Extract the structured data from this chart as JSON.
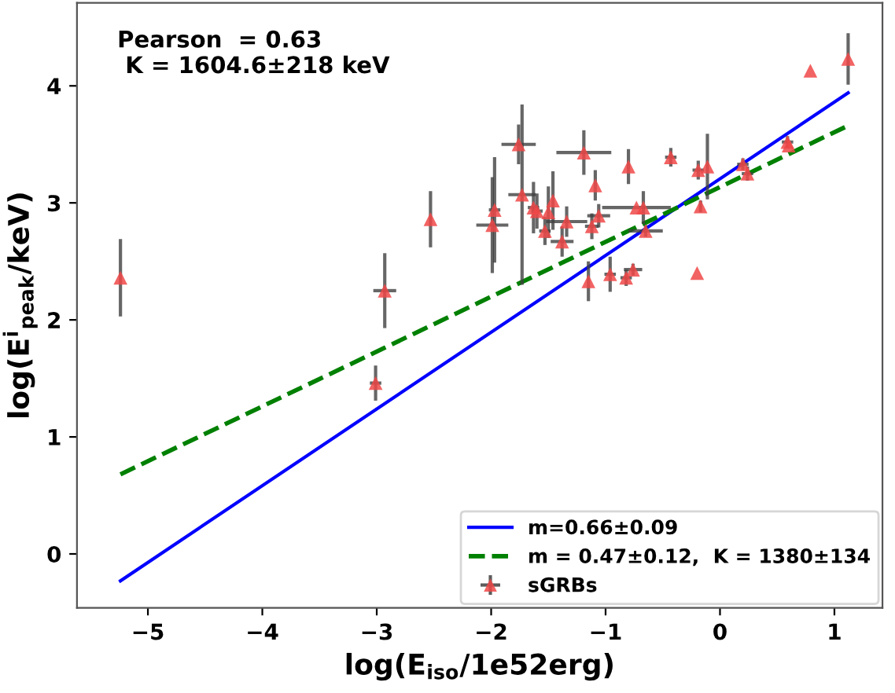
{
  "chart_data": {
    "type": "scatter",
    "xlabel": "log(E$_{iso}$/1e52erg)",
    "ylabel": "log(E$^{i}$$_{peak}$/keV)",
    "annotations": [
      "Pearson  = 0.63\n K = 1604.6±218 keV"
    ],
    "xlim": [
      -5.62,
      1.42
    ],
    "ylim": [
      -0.46,
      4.71
    ],
    "xticks": [
      {
        "value": -5,
        "label": "−5"
      },
      {
        "value": -4,
        "label": "−4"
      },
      {
        "value": -3,
        "label": "−3"
      },
      {
        "value": -2,
        "label": "−2"
      },
      {
        "value": -1,
        "label": "−1"
      },
      0,
      1
    ],
    "yticks": [
      0,
      1,
      2,
      3,
      4
    ],
    "grid": false,
    "legend": "bottom right",
    "series": [
      {
        "name": "m=0.66±0.09",
        "type": "line",
        "color": "#0000ff",
        "line_style": "solid",
        "x": [
          -5.24,
          1.12
        ],
        "values": [
          -0.23,
          3.94
        ]
      },
      {
        "name": "m = 0.47±0.12,  K = 1380±134",
        "type": "line",
        "color": "#008000",
        "line_style": "dashed",
        "x": [
          -5.24,
          1.12
        ],
        "values": [
          0.68,
          3.66
        ]
      },
      {
        "name": "sGRBs",
        "color": "#f04848",
        "marker": "triangle",
        "x": [
          -5.24,
          -2.93,
          -3.01,
          -2.53,
          -1.99,
          -1.97,
          -1.76,
          -1.73,
          -1.63,
          -1.6,
          -1.53,
          -1.5,
          -1.46,
          -1.38,
          -1.34,
          -1.19,
          -1.15,
          -1.12,
          -1.09,
          -1.06,
          -0.96,
          -0.82,
          -0.76,
          -0.8,
          -0.73,
          -0.67,
          -0.65,
          -0.43,
          -0.2,
          -0.19,
          -0.17,
          -0.11,
          0.2,
          0.24,
          0.59,
          0.6,
          0.79,
          1.12
        ],
        "values": [
          2.36,
          2.25,
          1.46,
          2.86,
          2.81,
          2.94,
          3.5,
          3.07,
          2.96,
          2.93,
          2.76,
          2.92,
          3.02,
          2.67,
          2.84,
          3.43,
          2.33,
          2.8,
          3.15,
          2.89,
          2.39,
          2.36,
          2.43,
          3.31,
          2.96,
          2.96,
          2.76,
          3.39,
          2.4,
          3.28,
          2.97,
          3.31,
          3.33,
          3.25,
          3.52,
          3.49,
          4.13,
          4.23
        ],
        "errors": [
          0.33,
          0.32,
          0.15,
          0.24,
          0.41,
          0.45,
          0.17,
          0.77,
          0.22,
          0.15,
          0.12,
          0.22,
          0.25,
          0.13,
          0.13,
          0.19,
          0.17,
          0.11,
          0.13,
          0.1,
          0.15,
          0.07,
          0.05,
          0.15,
          null,
          0.14,
          0.05,
          0.08,
          null,
          0.08,
          0.05,
          0.28,
          0.05,
          0.06,
          0.05,
          null,
          null,
          0.22
        ],
        "xerrors": [
          null,
          0.1,
          0.05,
          null,
          0.14,
          0.05,
          0.15,
          0.12,
          0.05,
          0.05,
          0.05,
          null,
          null,
          0.1,
          0.18,
          0.24,
          null,
          0.06,
          null,
          0.1,
          0.05,
          0.05,
          0.08,
          null,
          0.3,
          null,
          0.15,
          0.05,
          null,
          0.05,
          null,
          null,
          0.05,
          0.05,
          0.05,
          null,
          null,
          null
        ]
      }
    ]
  }
}
